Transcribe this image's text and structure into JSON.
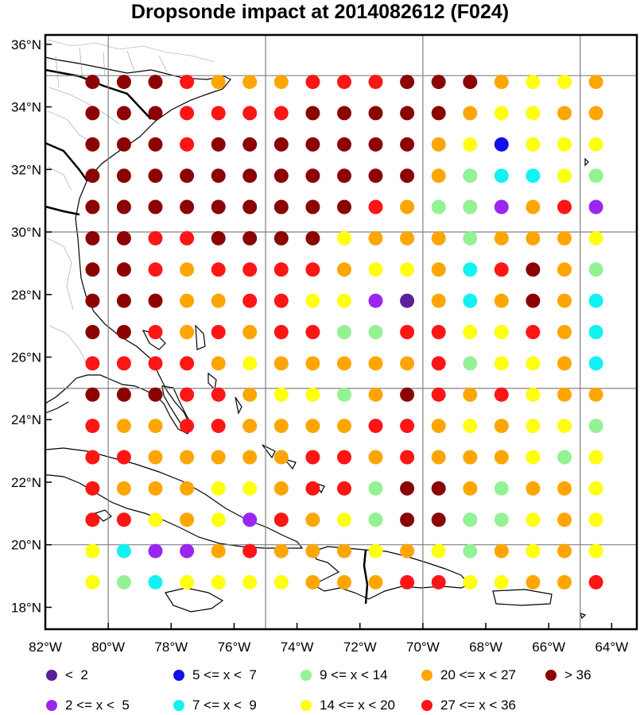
{
  "title": "Dropsonde impact at 2014082612 (F024)",
  "axes": {
    "x_ticks": [
      "82°W",
      "80°W",
      "78°W",
      "76°W",
      "74°W",
      "72°W",
      "70°W",
      "68°W",
      "66°W",
      "64°W"
    ],
    "y_ticks": [
      "36°N",
      "34°N",
      "32°N",
      "30°N",
      "28°N",
      "26°N",
      "24°N",
      "22°N",
      "20°N",
      "18°N"
    ]
  },
  "colors": {
    "lt2": "#5b1f9a",
    "2to5": "#9b26f0",
    "5to7": "#1010e8",
    "7to9": "#13f2f2",
    "9to14": "#93f293",
    "14to20": "#ffff10",
    "20to27": "#ffa500",
    "27to36": "#ff1515",
    "gt36": "#8b0303",
    "frame": "#000000",
    "grid": "#808080"
  },
  "legend": [
    {
      "key": "lt2",
      "label": "<  2"
    },
    {
      "key": "5to7",
      "label": "5 <= x <  7"
    },
    {
      "key": "9to14",
      "label": "9 <= x < 14"
    },
    {
      "key": "20to27",
      "label": "20 <= x < 27"
    },
    {
      "key": "gt36",
      "label": "> 36"
    },
    {
      "key": "2to5",
      "label": "2 <= x <  5"
    },
    {
      "key": "7to9",
      "label": "7 <= x <  9"
    },
    {
      "key": "14to20",
      "label": "14 <= x < 20"
    },
    {
      "key": "27to36",
      "label": "27 <= x < 36"
    }
  ],
  "chart_data": {
    "type": "scatter",
    "lon_range": [
      -82,
      -63.2
    ],
    "lat_range": [
      17.3,
      36.3
    ],
    "lons": [
      -80.5,
      -79.5,
      -78.5,
      -77.5,
      -76.5,
      -75.5,
      -74.5,
      -73.5,
      -72.5,
      -71.5,
      -70.5,
      -69.5,
      -68.5,
      -67.5,
      -66.5,
      -65.5,
      -64.5
    ],
    "lats": [
      34.8,
      33.8,
      32.8,
      31.8,
      30.8,
      29.8,
      28.8,
      27.8,
      26.8,
      25.8,
      24.8,
      23.8,
      22.8,
      21.8,
      20.8,
      19.8,
      18.8
    ],
    "rows": [
      [
        "gt36",
        "gt36",
        "gt36",
        "27to36",
        "20to27",
        "20to27",
        "20to27",
        "27to36",
        "27to36",
        "27to36",
        "gt36",
        "gt36",
        "gt36",
        "20to27",
        "14to20",
        "14to20",
        "20to27"
      ],
      [
        "gt36",
        "gt36",
        "gt36",
        "27to36",
        "27to36",
        "27to36",
        "27to36",
        "gt36",
        "gt36",
        "gt36",
        "gt36",
        "gt36",
        "20to27",
        "14to20",
        "14to20",
        "20to27",
        "20to27"
      ],
      [
        "gt36",
        "gt36",
        "gt36",
        "27to36",
        "gt36",
        "gt36",
        "gt36",
        "gt36",
        "gt36",
        "gt36",
        "gt36",
        "20to27",
        "14to20",
        "5to7",
        "14to20",
        "14to20",
        "14to20"
      ],
      [
        "gt36",
        "gt36",
        "gt36",
        "gt36",
        "gt36",
        "gt36",
        "gt36",
        "gt36",
        "gt36",
        "gt36",
        "gt36",
        "20to27",
        "9to14",
        "7to9",
        "7to9",
        "14to20",
        "9to14"
      ],
      [
        "gt36",
        "gt36",
        "gt36",
        "gt36",
        "gt36",
        "gt36",
        "gt36",
        "gt36",
        "gt36",
        "27to36",
        "20to27",
        "9to14",
        "9to14",
        "2to5",
        "20to27",
        "27to36",
        "2to5"
      ],
      [
        "gt36",
        "gt36",
        "27to36",
        "27to36",
        "gt36",
        "gt36",
        "gt36",
        "gt36",
        "14to20",
        "20to27",
        "20to27",
        "20to27",
        "9to14",
        "20to27",
        "20to27",
        "20to27",
        "14to20"
      ],
      [
        "gt36",
        "gt36",
        "27to36",
        "20to27",
        "27to36",
        "27to36",
        "27to36",
        "27to36",
        "20to27",
        "14to20",
        "14to20",
        "20to27",
        "7to9",
        "27to36",
        "gt36",
        "20to27",
        "9to14"
      ],
      [
        "gt36",
        "gt36",
        "gt36",
        "20to27",
        "20to27",
        "27to36",
        "27to36",
        "14to20",
        "14to20",
        "2to5",
        "lt2",
        "20to27",
        "7to9",
        "20to27",
        "gt36",
        "20to27",
        "7to9"
      ],
      [
        "gt36",
        "gt36",
        "27to36",
        "20to27",
        "27to36",
        "20to27",
        "27to36",
        "27to36",
        "9to14",
        "9to14",
        "27to36",
        "27to36",
        "14to20",
        "14to20",
        "27to36",
        "20to27",
        "7to9"
      ],
      [
        "27to36",
        "27to36",
        "27to36",
        "27to36",
        "20to27",
        "14to20",
        "20to27",
        "20to27",
        "20to27",
        "20to27",
        "20to27",
        "27to36",
        "9to14",
        "14to20",
        "14to20",
        "20to27",
        "7to9"
      ],
      [
        "gt36",
        "gt36",
        "gt36",
        "27to36",
        "27to36",
        "20to27",
        "14to20",
        "14to20",
        "9to14",
        "20to27",
        "gt36",
        "27to36",
        "20to27",
        "27to36",
        "14to20",
        "20to27",
        "20to27"
      ],
      [
        "27to36",
        "20to27",
        "20to27",
        "27to36",
        "27to36",
        "20to27",
        "20to27",
        "20to27",
        "20to27",
        "27to36",
        "27to36",
        "20to27",
        "14to20",
        "20to27",
        "14to20",
        "14to20",
        "9to14"
      ],
      [
        "27to36",
        "27to36",
        "20to27",
        "20to27",
        "20to27",
        "20to27",
        "20to27",
        "27to36",
        "27to36",
        "20to27",
        "27to36",
        "20to27",
        "20to27",
        "20to27",
        "14to20",
        "9to14",
        "14to20"
      ],
      [
        "27to36",
        "20to27",
        "20to27",
        "20to27",
        "14to20",
        "14to20",
        "20to27",
        "27to36",
        "27to36",
        "9to14",
        "gt36",
        "gt36",
        "20to27",
        "9to14",
        "20to27",
        "20to27",
        "14to20"
      ],
      [
        "27to36",
        "27to36",
        "14to20",
        "20to27",
        "14to20",
        "2to5",
        "27to36",
        "20to27",
        "14to20",
        "9to14",
        "gt36",
        "gt36",
        "9to14",
        "9to14",
        "14to20",
        "20to27",
        "14to20"
      ],
      [
        "14to20",
        "7to9",
        "2to5",
        "2to5",
        "20to27",
        "27to36",
        "20to27",
        "20to27",
        "20to27",
        "14to20",
        "20to27",
        "14to20",
        "9to14",
        "20to27",
        "14to20",
        "20to27",
        "14to20"
      ],
      [
        "14to20",
        "9to14",
        "7to9",
        "14to20",
        "14to20",
        "14to20",
        "14to20",
        "20to27",
        "20to27",
        "20to27",
        "27to36",
        "27to36",
        "14to20",
        "14to20",
        "20to27",
        "20to27",
        "27to36"
      ]
    ]
  }
}
